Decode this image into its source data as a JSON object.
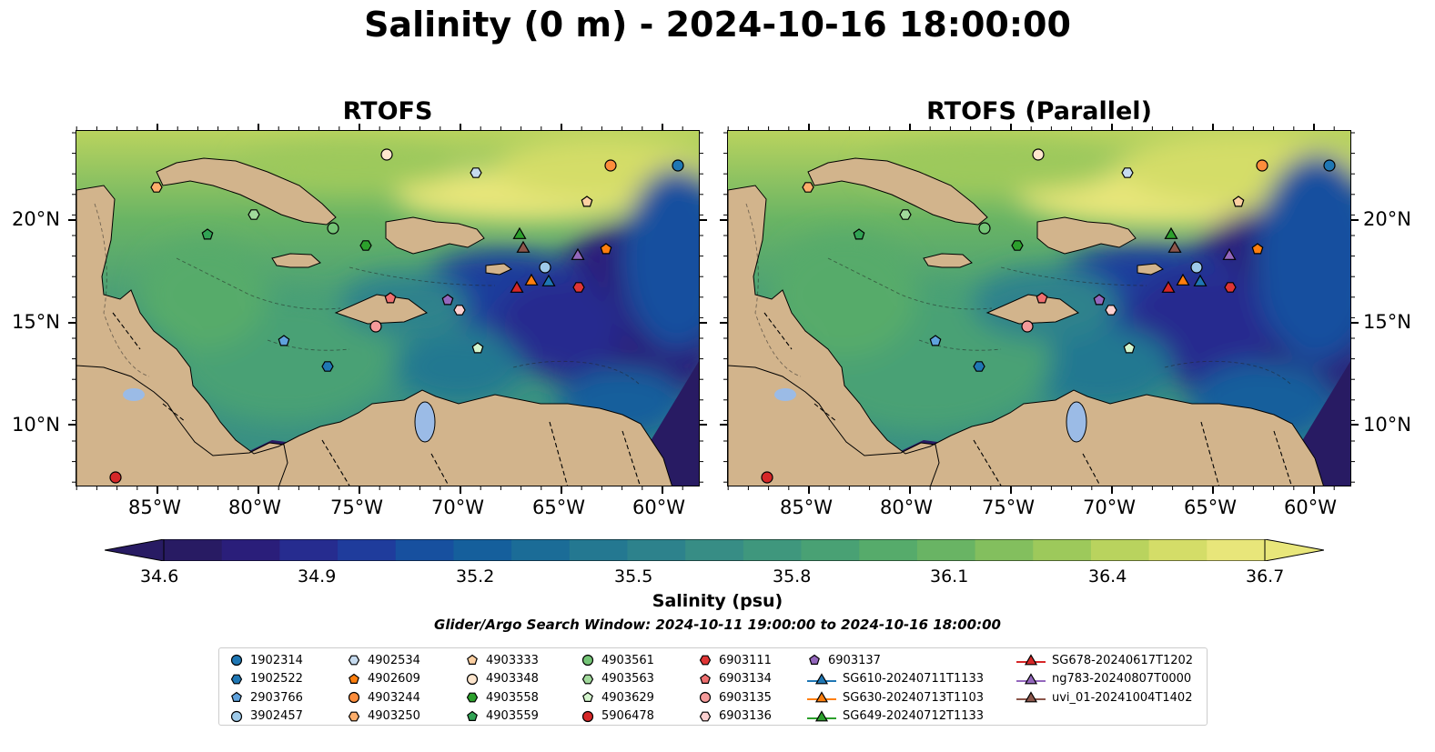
{
  "title": "Salinity (0 m) - 2024-10-16 18:00:00",
  "panels": [
    {
      "title": "RTOFS"
    },
    {
      "title": "RTOFS (Parallel)"
    }
  ],
  "lat_labels": [
    "20°N",
    "15°N",
    "10°N"
  ],
  "lon_labels": [
    "85°W",
    "80°W",
    "75°W",
    "70°W",
    "65°W",
    "60°W"
  ],
  "colorbar": {
    "ticks": [
      "34.6",
      "34.9",
      "35.2",
      "35.5",
      "35.8",
      "36.1",
      "36.4",
      "36.7"
    ],
    "label": "Salinity (psu)",
    "colors": [
      "#281b63",
      "#2a1e7a",
      "#262c8f",
      "#1f3c9c",
      "#17509f",
      "#155f9c",
      "#1b6c97",
      "#247891",
      "#2d828c",
      "#378d85",
      "#3f977d",
      "#49a174",
      "#56ab6b",
      "#69b464",
      "#83bf5e",
      "#9dc95b",
      "#b9d35e",
      "#d4dd68",
      "#e8e67a"
    ]
  },
  "search_window": "Glider/Argo Search Window: 2024-10-11 19:00:00 to 2024-10-16 18:00:00",
  "legend": [
    {
      "label": "1902314",
      "marker": "circle",
      "color": "#1f77b4"
    },
    {
      "label": "1902522",
      "marker": "hexagon",
      "color": "#1f77b4"
    },
    {
      "label": "2903766",
      "marker": "pentagon",
      "color": "#5fa2dd"
    },
    {
      "label": "3902457",
      "marker": "circle",
      "color": "#9ecae9"
    },
    {
      "label": "4902534",
      "marker": "hexagon",
      "color": "#c6dbef"
    },
    {
      "label": "4902609",
      "marker": "pentagon",
      "color": "#ff7f0e"
    },
    {
      "label": "4903244",
      "marker": "circle",
      "color": "#fd8d3c"
    },
    {
      "label": "4903250",
      "marker": "hexagon",
      "color": "#fdae6b"
    },
    {
      "label": "4903333",
      "marker": "pentagon",
      "color": "#fdd0a2"
    },
    {
      "label": "4903348",
      "marker": "circle",
      "color": "#fee6ce"
    },
    {
      "label": "4903558",
      "marker": "hexagon",
      "color": "#2ca02c"
    },
    {
      "label": "4903559",
      "marker": "pentagon",
      "color": "#31a354"
    },
    {
      "label": "4903561",
      "marker": "circle",
      "color": "#74c476"
    },
    {
      "label": "4903563",
      "marker": "hexagon",
      "color": "#a1d99b"
    },
    {
      "label": "4903629",
      "marker": "pentagon",
      "color": "#d4f5cd"
    },
    {
      "label": "5906478",
      "marker": "circle",
      "color": "#d62728"
    },
    {
      "label": "6903111",
      "marker": "hexagon",
      "color": "#e03535"
    },
    {
      "label": "6903134",
      "marker": "pentagon",
      "color": "#f07070"
    },
    {
      "label": "6903135",
      "marker": "circle",
      "color": "#f59a9a"
    },
    {
      "label": "6903136",
      "marker": "hexagon",
      "color": "#fcd0d0"
    },
    {
      "label": "6903137",
      "marker": "pentagon",
      "color": "#9467bd"
    },
    {
      "label": "SG610-20240711T1133",
      "marker": "triangle",
      "color": "#1f77b4"
    },
    {
      "label": "SG630-20240713T1103",
      "marker": "triangle",
      "color": "#ff7f0e"
    },
    {
      "label": "SG649-20240712T1133",
      "marker": "triangle",
      "color": "#2ca02c"
    },
    {
      "label": "SG678-20240617T1202",
      "marker": "triangle",
      "color": "#d62728"
    },
    {
      "label": "ng783-20240807T0000",
      "marker": "triangle",
      "color": "#9467bd"
    },
    {
      "label": "uvi_01-20241004T1402",
      "marker": "triangle",
      "color": "#8c564b"
    }
  ],
  "colors": {
    "land": "#d2b48c",
    "lake": "#9bbbe6",
    "marker_edge": "#000000"
  }
}
